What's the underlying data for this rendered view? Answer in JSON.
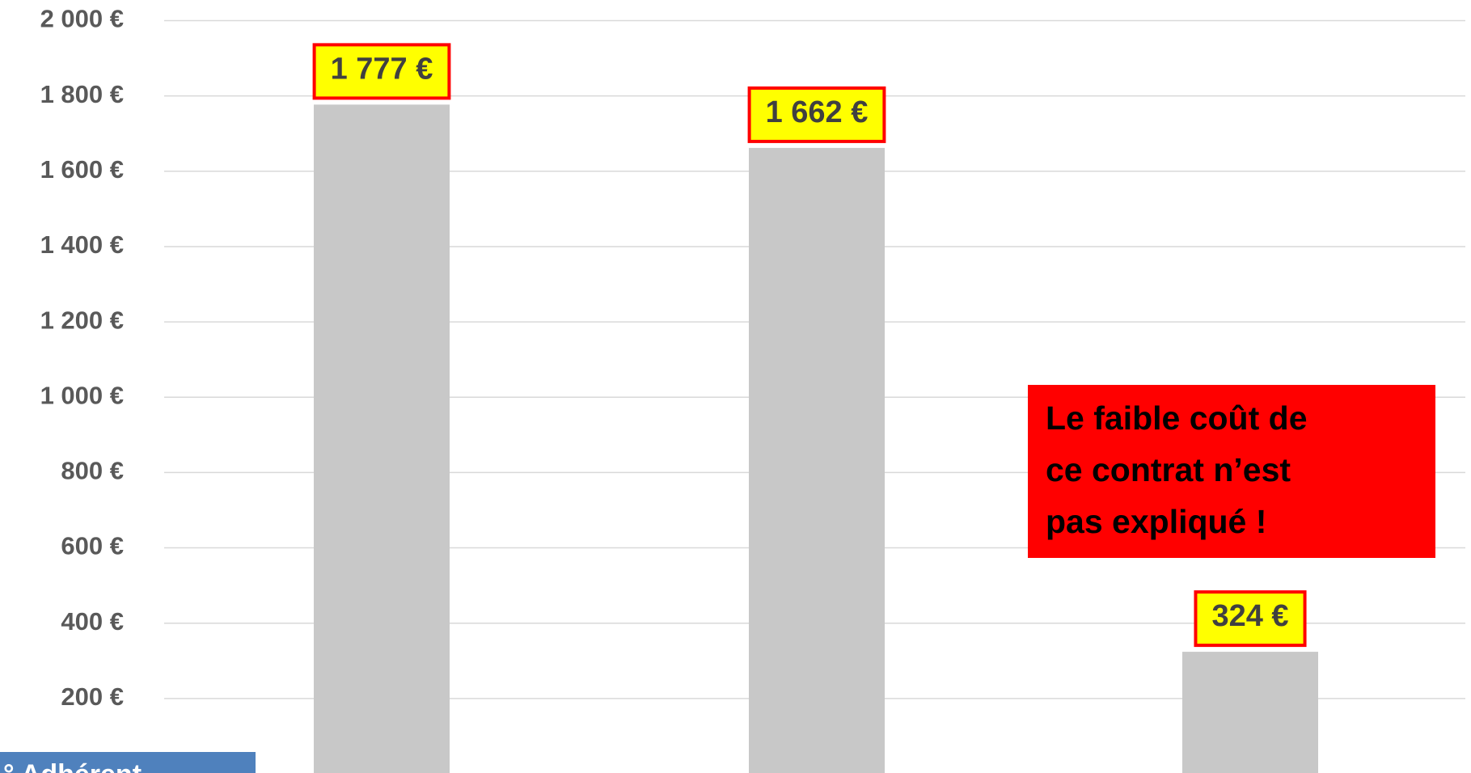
{
  "chart_data": {
    "type": "bar",
    "categories": [
      null,
      null,
      null
    ],
    "values": [
      1777,
      1662,
      324
    ],
    "value_labels": [
      "1 777 €",
      "1 662 €",
      "324 €"
    ],
    "color": "#c8c8c8",
    "ylim": [
      0,
      2000
    ],
    "yticks": [
      {
        "value": 200,
        "label": "200 €"
      },
      {
        "value": 400,
        "label": "400 €"
      },
      {
        "value": 600,
        "label": "600 €"
      },
      {
        "value": 800,
        "label": "800 €"
      },
      {
        "value": 1000,
        "label": "1 000 €"
      },
      {
        "value": 1200,
        "label": "1 200 €"
      },
      {
        "value": 1400,
        "label": "1 400 €"
      },
      {
        "value": 1600,
        "label": "1 600 €"
      },
      {
        "value": 1800,
        "label": "1 800 €"
      },
      {
        "value": 2000,
        "label": "2 000 €"
      }
    ],
    "grid": true,
    "annotation": [
      "Le faible coût de",
      "ce contrat n’est",
      "pas expliqué !"
    ],
    "footer_label": "° Adhérent"
  }
}
